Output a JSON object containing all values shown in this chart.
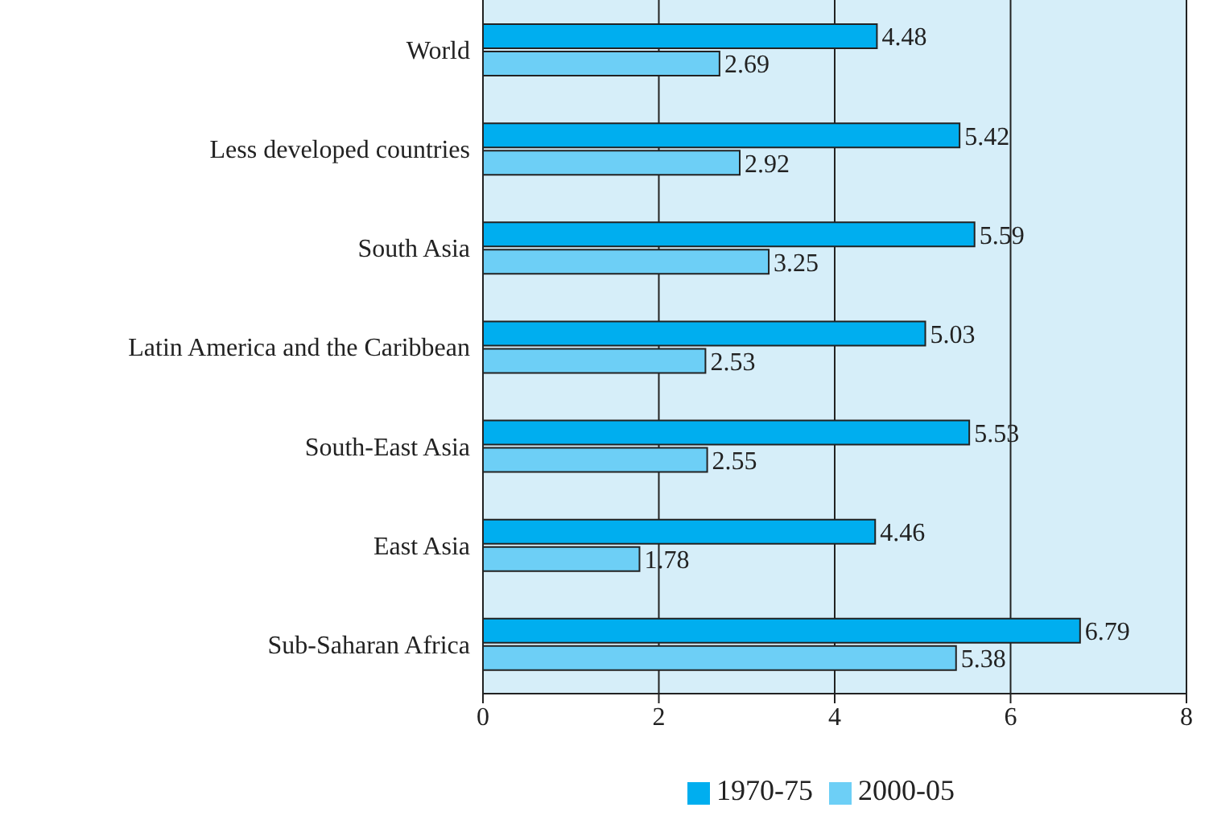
{
  "chart_data": {
    "type": "bar",
    "orientation": "horizontal",
    "categories": [
      "World",
      "Less developed countries",
      "South Asia",
      "Latin America and the Caribbean",
      "South-East Asia",
      "East Asia",
      "Sub-Saharan Africa"
    ],
    "series": [
      {
        "name": "1970-75",
        "color": "#00aeef",
        "values": [
          4.48,
          5.42,
          5.59,
          5.03,
          5.53,
          4.46,
          6.79
        ]
      },
      {
        "name": "2000-05",
        "color": "#6dcff6",
        "values": [
          2.69,
          2.92,
          3.25,
          2.53,
          2.55,
          1.78,
          5.38
        ]
      }
    ],
    "xlim": [
      0,
      8
    ],
    "xticks": [
      0,
      2,
      4,
      6,
      8
    ],
    "grid": "x",
    "legend": "bottom",
    "data_labels": true
  }
}
